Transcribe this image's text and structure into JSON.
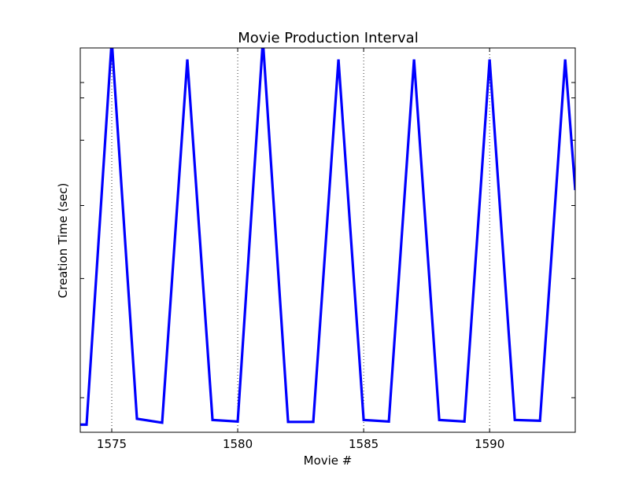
{
  "chart_data": {
    "type": "line",
    "title": "Movie Production Interval",
    "xlabel": "Movie #",
    "ylabel": "Creation Time (sec)",
    "xlim": [
      1573.75,
      1593.4
    ],
    "ylim": [
      0,
      1
    ],
    "x_ticks": [
      1575,
      1580,
      1585,
      1590
    ],
    "x_tick_labels": [
      "1575",
      "1580",
      "1585",
      "1590"
    ],
    "y_ticks": [
      0.09,
      0.4,
      0.59,
      0.76,
      0.87,
      0.91
    ],
    "y_tick_labels_shown": false,
    "grid": "x-major dotted",
    "line_color": "#0000ff",
    "series": [
      {
        "x": [
          1573.75,
          1574,
          1575,
          1576,
          1577,
          1578,
          1579,
          1580,
          1581,
          1582,
          1583,
          1584,
          1585,
          1586,
          1587,
          1588,
          1589,
          1590,
          1591,
          1592,
          1593,
          1593.4
        ],
        "values": [
          0.02,
          0.02,
          1.02,
          0.035,
          0.025,
          0.97,
          0.032,
          0.028,
          1.02,
          0.027,
          0.027,
          0.97,
          0.032,
          0.028,
          0.97,
          0.032,
          0.028,
          0.97,
          0.032,
          0.03,
          0.97,
          0.63
        ]
      }
    ]
  }
}
